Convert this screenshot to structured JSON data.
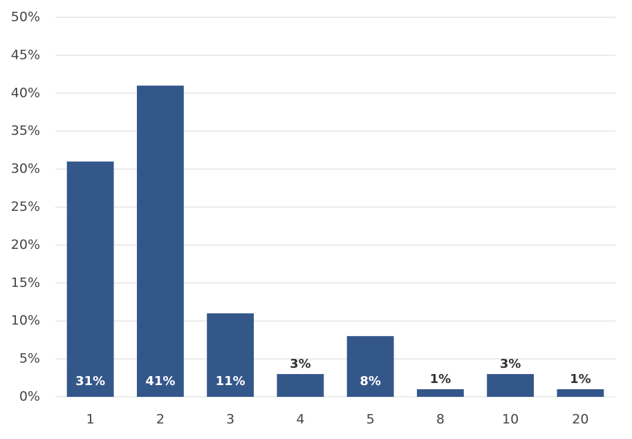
{
  "chart_data": {
    "type": "bar",
    "categories": [
      "1",
      "2",
      "3",
      "4",
      "5",
      "8",
      "10",
      "20"
    ],
    "values": [
      31,
      41,
      11,
      3,
      8,
      1,
      3,
      1
    ],
    "value_labels": [
      "31%",
      "41%",
      "11%",
      "3%",
      "8%",
      "1%",
      "3%",
      "1%"
    ],
    "color": "#34578a",
    "ylim": [
      0,
      50
    ],
    "yticks": [
      {
        "value": 0,
        "label": "0%"
      },
      {
        "value": 5,
        "label": "5%"
      },
      {
        "value": 10,
        "label": "10%"
      },
      {
        "value": 15,
        "label": "15%"
      },
      {
        "value": 20,
        "label": "20%"
      },
      {
        "value": 25,
        "label": "25%"
      },
      {
        "value": 30,
        "label": "30%"
      },
      {
        "value": 35,
        "label": "35%"
      },
      {
        "value": 40,
        "label": "40%"
      },
      {
        "value": 45,
        "label": "45%"
      },
      {
        "value": 50,
        "label": "50%"
      }
    ],
    "grid": true
  }
}
